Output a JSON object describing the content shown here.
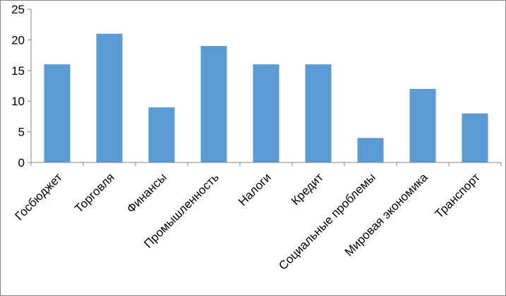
{
  "chart_data": {
    "type": "bar",
    "title": "",
    "xlabel": "",
    "ylabel": "",
    "categories": [
      "Госбюджет",
      "Торговля",
      "Финансы",
      "Промышленность",
      "Налоги",
      "Кредит",
      "Социальные проблемы",
      "Мировая экономика",
      "Транспорт"
    ],
    "values": [
      16,
      21,
      9,
      19,
      16,
      16,
      4,
      12,
      8
    ],
    "ylim": [
      0,
      25
    ],
    "yticks": [
      0,
      5,
      10,
      15,
      20,
      25
    ],
    "grid": false,
    "legend": "none",
    "bar_color": "#5B9BD5",
    "axis_color": "#868686"
  }
}
